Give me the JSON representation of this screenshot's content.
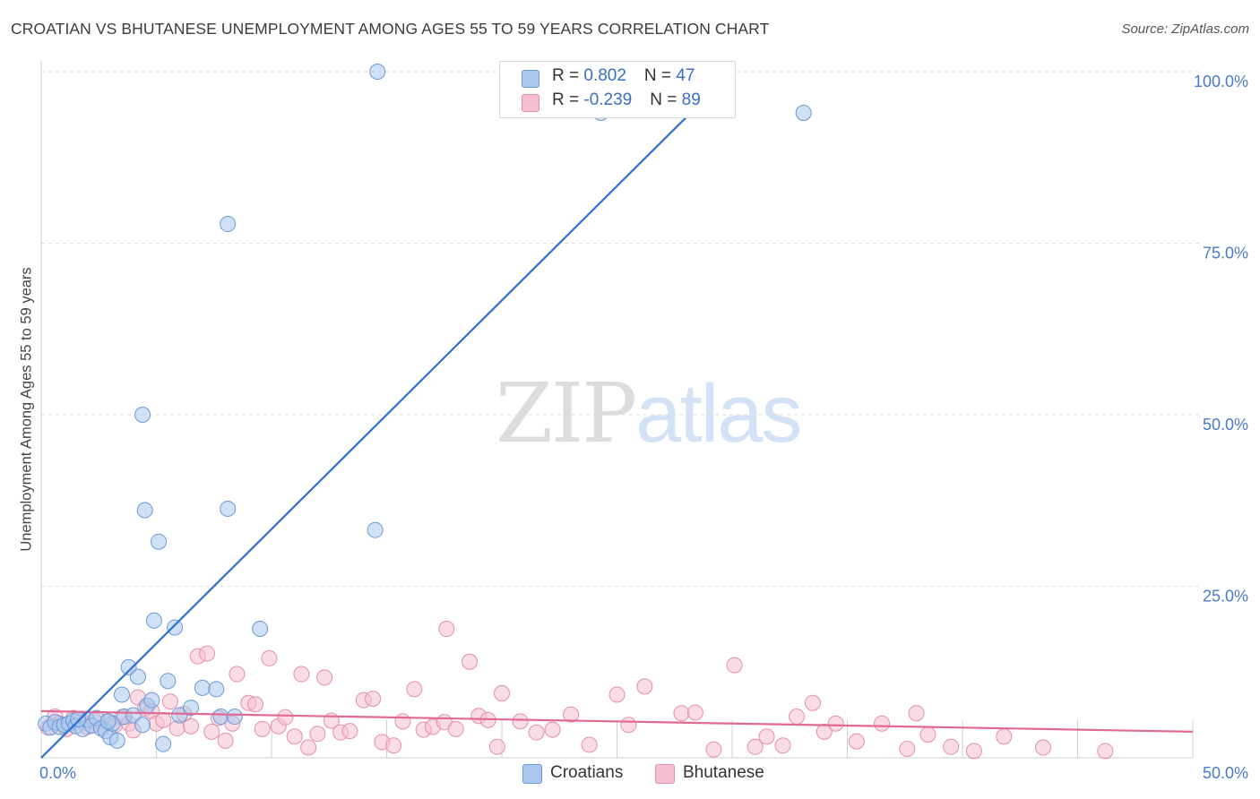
{
  "title": "CROATIAN VS BHUTANESE UNEMPLOYMENT AMONG AGES 55 TO 59 YEARS CORRELATION CHART",
  "source": "Source: ZipAtlas.com",
  "watermark": {
    "part1": "ZIP",
    "part2": "atlas"
  },
  "colors": {
    "croatians_fill": "#aac8ef",
    "croatians_stroke": "#6a9ad8",
    "croatians_line": "#2f6fd0",
    "bhutanese_fill": "#f6bfd0",
    "bhutanese_stroke": "#e58fab",
    "bhutanese_line": "#e06a94",
    "grid": "#dcdcdc",
    "tick_label": "#4a7bc8"
  },
  "legend": {
    "rows": [
      {
        "r_label": "R = ",
        "r_value": "0.802",
        "n_label": "N = ",
        "n_value": "47"
      },
      {
        "r_label": "R = ",
        "r_value": "-0.239",
        "n_label": "N = ",
        "n_value": "89"
      }
    ]
  },
  "bottom_legend": [
    "Croatians",
    "Bhutanese"
  ],
  "chart_data": {
    "type": "scatter",
    "title": "CROATIAN VS BHUTANESE UNEMPLOYMENT AMONG AGES 55 TO 59 YEARS CORRELATION CHART",
    "xlabel": "",
    "ylabel": "Unemployment Among Ages 55 to 59 years",
    "xlim": [
      0,
      50
    ],
    "ylim": [
      0,
      100
    ],
    "x_ticks": [
      {
        "value": 0,
        "label": "0.0%"
      },
      {
        "value": 50,
        "label": "50.0%"
      }
    ],
    "y_ticks": [
      {
        "value": 25,
        "label": "25.0%"
      },
      {
        "value": 50,
        "label": "50.0%"
      },
      {
        "value": 75,
        "label": "75.0%"
      },
      {
        "value": 100,
        "label": "100.0%"
      }
    ],
    "grid": true,
    "legend_position": "top-center",
    "series": [
      {
        "name": "Croatians",
        "R": 0.802,
        "N": 47,
        "trendline": {
          "x": [
            0.0,
            30.0
          ],
          "y": [
            0.0,
            100.0
          ]
        },
        "points": [
          [
            0.2,
            5.0
          ],
          [
            0.4,
            4.4
          ],
          [
            0.6,
            5.2
          ],
          [
            0.8,
            4.5
          ],
          [
            1.0,
            4.8
          ],
          [
            1.2,
            5.0
          ],
          [
            1.4,
            5.4
          ],
          [
            1.5,
            4.6
          ],
          [
            1.8,
            4.2
          ],
          [
            2.0,
            5.5
          ],
          [
            2.2,
            4.7
          ],
          [
            2.4,
            5.8
          ],
          [
            2.6,
            4.3
          ],
          [
            2.8,
            3.9
          ],
          [
            3.0,
            3.0
          ],
          [
            3.1,
            5.0
          ],
          [
            3.3,
            2.5
          ],
          [
            3.5,
            9.2
          ],
          [
            3.6,
            6.0
          ],
          [
            3.8,
            13.2
          ],
          [
            4.0,
            6.2
          ],
          [
            4.2,
            11.8
          ],
          [
            4.4,
            4.8
          ],
          [
            4.6,
            7.6
          ],
          [
            4.8,
            8.4
          ],
          [
            4.4,
            50.0
          ],
          [
            4.5,
            36.1
          ],
          [
            5.1,
            31.5
          ],
          [
            5.3,
            2.0
          ],
          [
            5.5,
            11.2
          ],
          [
            4.9,
            20.0
          ],
          [
            5.8,
            19.0
          ],
          [
            6.0,
            6.2
          ],
          [
            6.5,
            7.3
          ],
          [
            7.0,
            10.2
          ],
          [
            7.6,
            10.0
          ],
          [
            7.8,
            6.0
          ],
          [
            8.1,
            36.3
          ],
          [
            8.1,
            77.8
          ],
          [
            8.4,
            6.0
          ],
          [
            9.5,
            18.8
          ],
          [
            14.5,
            33.2
          ],
          [
            14.6,
            100.0
          ],
          [
            24.3,
            94.0
          ],
          [
            33.1,
            94.0
          ],
          [
            1.6,
            5.6
          ],
          [
            2.9,
            5.3
          ]
        ]
      },
      {
        "name": "Bhutanese",
        "R": -0.239,
        "N": 89,
        "trendline": {
          "x": [
            0.0,
            50.0
          ],
          "y": [
            6.8,
            3.8
          ]
        },
        "points": [
          [
            0.3,
            4.4
          ],
          [
            0.6,
            6.0
          ],
          [
            0.8,
            5.0
          ],
          [
            1.1,
            4.2
          ],
          [
            1.4,
            5.8
          ],
          [
            1.7,
            5.5
          ],
          [
            2.0,
            4.5
          ],
          [
            2.3,
            5.4
          ],
          [
            2.6,
            4.3
          ],
          [
            2.9,
            5.2
          ],
          [
            3.2,
            4.8
          ],
          [
            3.5,
            5.9
          ],
          [
            3.8,
            5.0
          ],
          [
            4.0,
            4.0
          ],
          [
            4.2,
            8.8
          ],
          [
            4.5,
            7.2
          ],
          [
            4.8,
            6.8
          ],
          [
            5.0,
            5.0
          ],
          [
            5.3,
            5.5
          ],
          [
            5.6,
            8.2
          ],
          [
            5.9,
            4.3
          ],
          [
            6.2,
            6.4
          ],
          [
            6.5,
            4.6
          ],
          [
            6.8,
            14.8
          ],
          [
            7.2,
            15.2
          ],
          [
            7.4,
            3.8
          ],
          [
            7.7,
            5.8
          ],
          [
            8.0,
            2.5
          ],
          [
            8.3,
            5.0
          ],
          [
            8.5,
            12.2
          ],
          [
            9.0,
            8.0
          ],
          [
            9.3,
            7.8
          ],
          [
            9.6,
            4.2
          ],
          [
            9.9,
            14.5
          ],
          [
            10.3,
            4.6
          ],
          [
            10.6,
            5.9
          ],
          [
            11.0,
            3.1
          ],
          [
            11.3,
            12.2
          ],
          [
            11.6,
            1.5
          ],
          [
            12.0,
            3.5
          ],
          [
            12.3,
            11.7
          ],
          [
            12.6,
            5.4
          ],
          [
            13.0,
            3.7
          ],
          [
            13.4,
            3.9
          ],
          [
            14.0,
            8.4
          ],
          [
            14.4,
            8.6
          ],
          [
            14.8,
            2.3
          ],
          [
            15.3,
            1.8
          ],
          [
            15.7,
            5.3
          ],
          [
            16.2,
            10.0
          ],
          [
            16.6,
            4.1
          ],
          [
            17.0,
            4.5
          ],
          [
            17.5,
            5.2
          ],
          [
            17.6,
            18.8
          ],
          [
            18.0,
            4.2
          ],
          [
            18.6,
            14.0
          ],
          [
            19.0,
            6.1
          ],
          [
            19.4,
            5.5
          ],
          [
            19.8,
            1.6
          ],
          [
            20.0,
            9.4
          ],
          [
            20.8,
            5.3
          ],
          [
            21.5,
            3.7
          ],
          [
            22.2,
            4.1
          ],
          [
            23.0,
            6.3
          ],
          [
            23.8,
            1.9
          ],
          [
            25.0,
            9.2
          ],
          [
            25.5,
            4.8
          ],
          [
            26.2,
            10.4
          ],
          [
            27.8,
            6.5
          ],
          [
            28.4,
            6.6
          ],
          [
            29.2,
            1.2
          ],
          [
            30.1,
            13.5
          ],
          [
            31.0,
            1.6
          ],
          [
            31.5,
            3.1
          ],
          [
            32.2,
            1.8
          ],
          [
            32.8,
            6.0
          ],
          [
            33.5,
            8.0
          ],
          [
            34.0,
            3.8
          ],
          [
            34.5,
            5.0
          ],
          [
            35.4,
            2.4
          ],
          [
            36.5,
            5.0
          ],
          [
            37.6,
            1.3
          ],
          [
            38.0,
            6.5
          ],
          [
            38.5,
            3.4
          ],
          [
            39.5,
            1.6
          ],
          [
            40.5,
            1.0
          ],
          [
            41.8,
            3.1
          ],
          [
            43.5,
            1.5
          ],
          [
            46.2,
            1.0
          ]
        ]
      }
    ]
  }
}
